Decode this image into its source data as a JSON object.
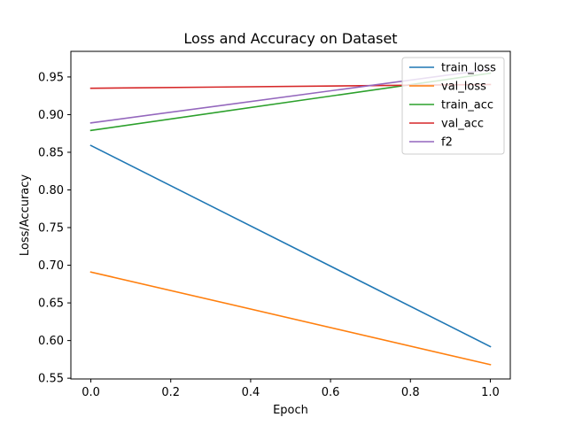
{
  "chart_data": {
    "type": "line",
    "title": "Loss and Accuracy on Dataset",
    "xlabel": "Epoch",
    "ylabel": "Loss/Accuracy",
    "x": [
      0,
      1
    ],
    "xlim": [
      -0.05,
      1.05
    ],
    "ylim": [
      0.549,
      0.984
    ],
    "xticks": [
      0.0,
      0.2,
      0.4,
      0.6,
      0.8,
      1.0
    ],
    "xtick_labels": [
      "0.0",
      "0.2",
      "0.4",
      "0.6",
      "0.8",
      "1.0"
    ],
    "yticks": [
      0.55,
      0.6,
      0.65,
      0.7,
      0.75,
      0.8,
      0.85,
      0.9,
      0.95
    ],
    "ytick_labels": [
      "0.55",
      "0.60",
      "0.65",
      "0.70",
      "0.75",
      "0.80",
      "0.85",
      "0.90",
      "0.95"
    ],
    "grid": false,
    "legend_position": "top-right",
    "series": [
      {
        "name": "train_loss",
        "color": "#1f77b4",
        "values": [
          0.859,
          0.592
        ]
      },
      {
        "name": "val_loss",
        "color": "#ff7f0e",
        "values": [
          0.691,
          0.568
        ]
      },
      {
        "name": "train_acc",
        "color": "#2ca02c",
        "values": [
          0.879,
          0.955
        ]
      },
      {
        "name": "val_acc",
        "color": "#d62728",
        "values": [
          0.935,
          0.94
        ]
      },
      {
        "name": "f2",
        "color": "#9467bd",
        "values": [
          0.889,
          0.96
        ]
      }
    ]
  }
}
